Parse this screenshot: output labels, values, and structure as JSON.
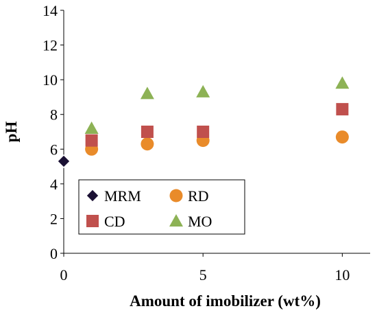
{
  "chart_data": {
    "type": "scatter",
    "xlabel": "Amount of imobilizer (wt%)",
    "ylabel": "pH",
    "xlim": [
      0,
      11
    ],
    "ylim": [
      0,
      14
    ],
    "x_ticks": [
      0,
      5,
      10
    ],
    "y_ticks": [
      0,
      2,
      4,
      6,
      8,
      10,
      12,
      14
    ],
    "grid": false,
    "legend_position": "bottom-left",
    "series": [
      {
        "name": "MRM",
        "marker": "diamond",
        "color": "#1a1033",
        "points": [
          {
            "x": 0,
            "y": 5.3
          }
        ]
      },
      {
        "name": "RD",
        "marker": "circle",
        "color": "#E98B2A",
        "points": [
          {
            "x": 1,
            "y": 6.0
          },
          {
            "x": 3,
            "y": 6.3
          },
          {
            "x": 5,
            "y": 6.5
          },
          {
            "x": 10,
            "y": 6.7
          }
        ]
      },
      {
        "name": "CD",
        "marker": "square",
        "color": "#C0504D",
        "points": [
          {
            "x": 1,
            "y": 6.5
          },
          {
            "x": 3,
            "y": 7.0
          },
          {
            "x": 5,
            "y": 7.0
          },
          {
            "x": 10,
            "y": 8.3
          }
        ]
      },
      {
        "name": "MO",
        "marker": "triangle",
        "color": "#8DB255",
        "points": [
          {
            "x": 1,
            "y": 7.2
          },
          {
            "x": 3,
            "y": 9.2
          },
          {
            "x": 5,
            "y": 9.3
          },
          {
            "x": 10,
            "y": 9.8
          }
        ]
      }
    ],
    "legend": [
      {
        "name": "MRM",
        "marker": "diamond",
        "color": "#1a1033"
      },
      {
        "name": "RD",
        "marker": "circle",
        "color": "#E98B2A"
      },
      {
        "name": "CD",
        "marker": "square",
        "color": "#C0504D"
      },
      {
        "name": "MO",
        "marker": "triangle",
        "color": "#8DB255"
      }
    ]
  }
}
